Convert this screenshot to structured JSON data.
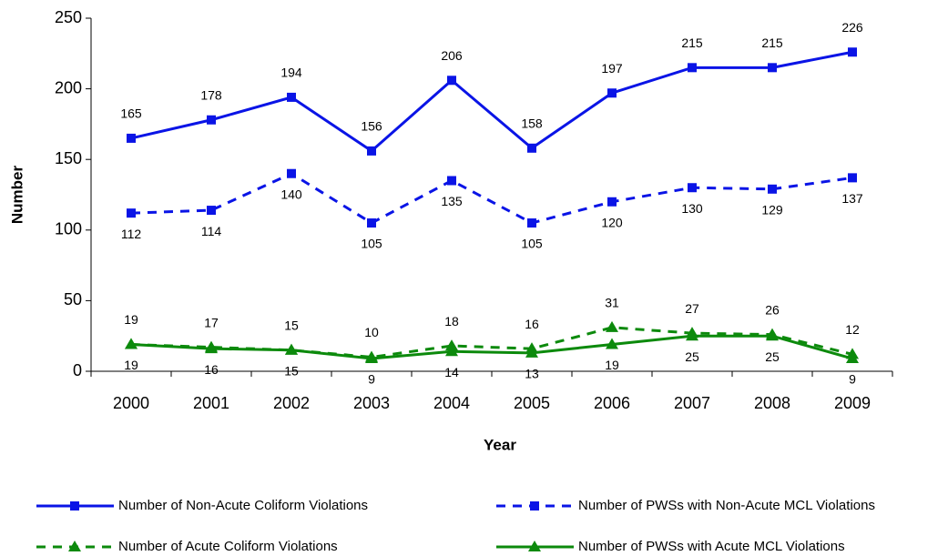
{
  "chart_data": {
    "type": "line",
    "x_label": "Year",
    "y_label": "Number",
    "categories": [
      "2000",
      "2001",
      "2002",
      "2003",
      "2004",
      "2005",
      "2006",
      "2007",
      "2008",
      "2009"
    ],
    "series": [
      {
        "name": "Number of Non-Acute Coliform Violations",
        "color": "#0a14e6",
        "dash": false,
        "marker": "square",
        "label_side": "above",
        "values": [
          165,
          178,
          194,
          156,
          206,
          158,
          197,
          215,
          215,
          226
        ]
      },
      {
        "name": "Number of PWSs with Non-Acute MCL Violations",
        "color": "#0a14e6",
        "dash": true,
        "marker": "square",
        "label_side": "below",
        "values": [
          112,
          114,
          140,
          105,
          135,
          105,
          120,
          130,
          129,
          137
        ]
      },
      {
        "name": "Number of Acute Coliform Violations",
        "color": "#0c8a0c",
        "dash": true,
        "marker": "triangle",
        "label_side": "above",
        "values": [
          19,
          17,
          15,
          10,
          18,
          16,
          31,
          27,
          26,
          12
        ]
      },
      {
        "name": "Number of PWSs with Acute MCL Violations",
        "color": "#0c8a0c",
        "dash": false,
        "marker": "triangle",
        "label_side": "below",
        "values": [
          19,
          16,
          15,
          9,
          14,
          13,
          19,
          25,
          25,
          9
        ]
      }
    ],
    "ylim": [
      0,
      250
    ],
    "yticks": [
      0,
      50,
      100,
      150,
      200,
      250
    ],
    "legend": "bottom"
  }
}
